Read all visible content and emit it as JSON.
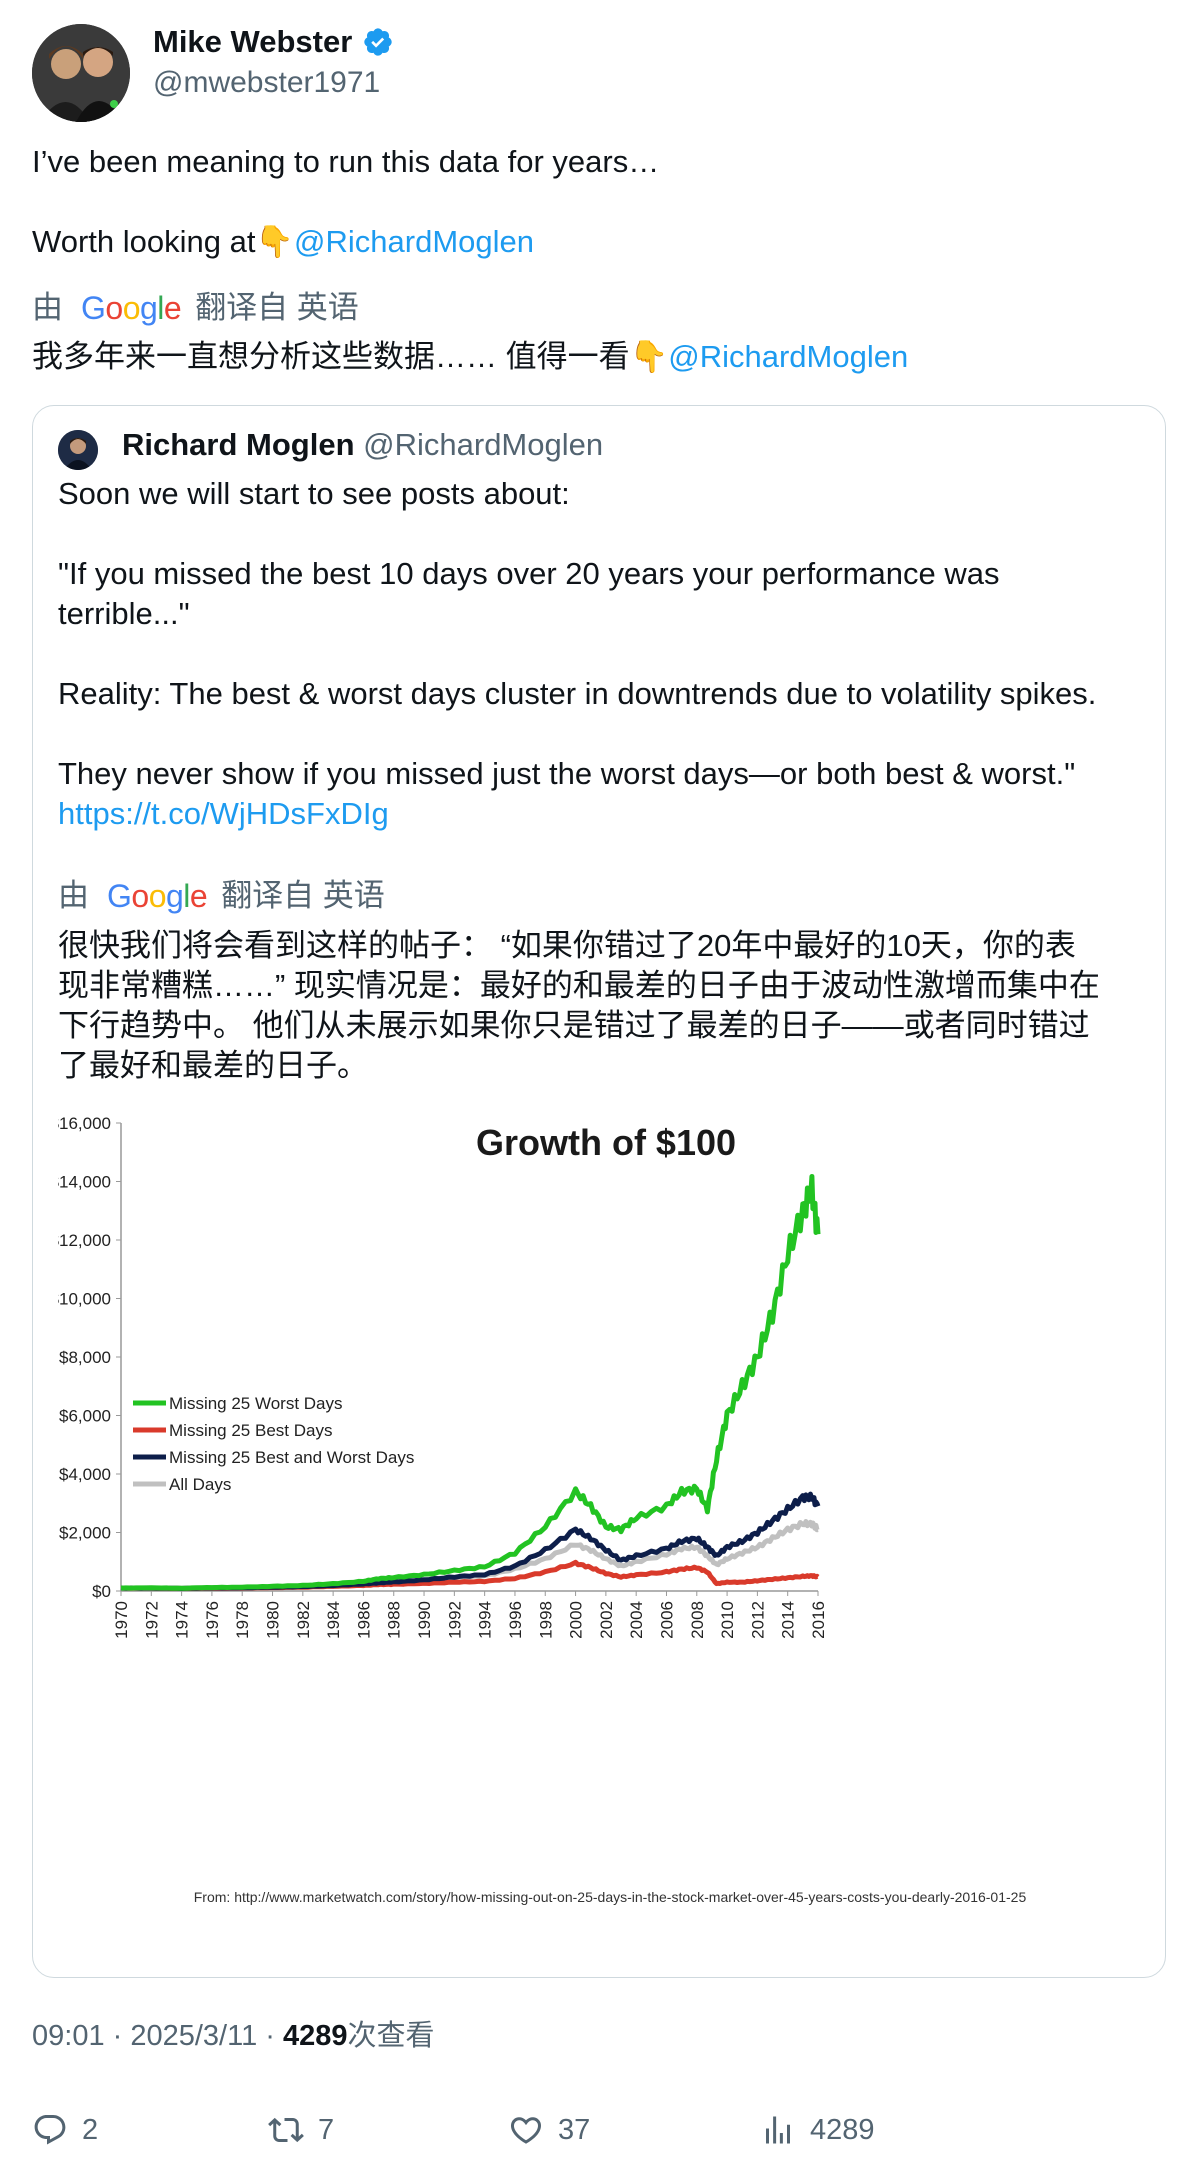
{
  "author": {
    "name": "Mike Webster",
    "handle": "@mwebster1971",
    "verified_icon": "verified-badge-icon"
  },
  "tweet": {
    "line1": "I’ve been meaning to run this data for years…",
    "line2_text": "Worth looking at👇",
    "line2_mention": "@RichardMoglen",
    "translation_by": "由",
    "translation_google": "Google",
    "translation_label": "翻译自 英语",
    "translated_text": "我多年来一直想分析这些数据…… 值得一看👇",
    "translated_mention": "@RichardMoglen"
  },
  "quote": {
    "name": "Richard Moglen",
    "handle": "@RichardMoglen",
    "p1": "Soon we will start to see posts about:",
    "p2a": "\"If you missed the best 10 days over 20 years your performance was",
    "p2b": "terrible...\"",
    "p3": "Reality: The best & worst days cluster in downtrends due to volatility spikes.",
    "p4": "They never show if you missed just the worst days—or both best & worst.\"",
    "link": "https://t.co/WjHDsFxDIg",
    "translation_by": "由",
    "translation_google": "Google",
    "translation_label": "翻译自 英语",
    "translated_lines": [
      "很快我们将会看到这样的帖子： “如果你错过了20年中最好的10天，你的表",
      "现非常糟糕……” 现实情况是：最好的和最差的日子由于波动性激增而集中在",
      "下行趋势中。 他们从未展示如果你只是错过了最差的日子——或者同时错过",
      "了最好和最差的日子。"
    ]
  },
  "chart_data": {
    "type": "line",
    "title": "Growth of $100",
    "source": "From: http://www.marketwatch.com/story/how-missing-out-on-25-days-in-the-stock-market-over-45-years-costs-you-dearly-2016-01-25",
    "y_ticks": [
      "$16,000",
      "$14,000",
      "$12,000",
      "$10,000",
      "$8,000",
      "$6,000",
      "$4,000",
      "$2,000",
      "$0"
    ],
    "x_ticks": [
      "1970",
      "1972",
      "1974",
      "1976",
      "1978",
      "1980",
      "1982",
      "1984",
      "1986",
      "1988",
      "1990",
      "1992",
      "1994",
      "1996",
      "1998",
      "2000",
      "2002",
      "2004",
      "2006",
      "2008",
      "2010",
      "2012",
      "2014",
      "2016"
    ],
    "ylim": [
      0,
      16000
    ],
    "xlim": [
      1970,
      2016
    ],
    "grid": false,
    "legend_position": "middle-left",
    "x": [
      1970,
      1972,
      1974,
      1976,
      1978,
      1980,
      1982,
      1984,
      1986,
      1987,
      1988,
      1990,
      1992,
      1994,
      1996,
      1998,
      2000,
      2001,
      2002,
      2003,
      2004,
      2006,
      2007,
      2008,
      2008.7,
      2009.3,
      2010,
      2011,
      2012,
      2013,
      2014,
      2015,
      2015.6,
      2016
    ],
    "series": [
      {
        "name": "Missing 25 Worst Days",
        "color": "#22c322",
        "values": [
          100,
          110,
          95,
          120,
          130,
          160,
          190,
          250,
          330,
          420,
          460,
          560,
          700,
          830,
          1300,
          2200,
          3400,
          2900,
          2200,
          2100,
          2500,
          2900,
          3400,
          3500,
          2800,
          4500,
          6000,
          7000,
          8000,
          9500,
          11500,
          13000,
          13700,
          12200
        ]
      },
      {
        "name": "Missing 25 Best Days",
        "color": "#d93a2b",
        "values": [
          100,
          100,
          85,
          95,
          100,
          115,
          130,
          160,
          190,
          220,
          230,
          260,
          300,
          330,
          430,
          650,
          950,
          800,
          600,
          480,
          550,
          650,
          750,
          800,
          650,
          250,
          300,
          300,
          350,
          400,
          450,
          500,
          520,
          480
        ]
      },
      {
        "name": "Missing 25 Best and Worst Days",
        "color": "#0d1e4a",
        "values": [
          100,
          100,
          90,
          105,
          110,
          130,
          150,
          190,
          240,
          280,
          310,
          380,
          480,
          560,
          850,
          1400,
          2100,
          1800,
          1400,
          1050,
          1200,
          1450,
          1700,
          1800,
          1500,
          1200,
          1500,
          1700,
          2000,
          2400,
          2800,
          3200,
          3200,
          2900
        ]
      },
      {
        "name": "All Days",
        "color": "#c0c0c0",
        "values": [
          100,
          105,
          95,
          110,
          120,
          140,
          160,
          200,
          260,
          300,
          320,
          380,
          450,
          520,
          750,
          1100,
          1600,
          1400,
          1100,
          850,
          1000,
          1250,
          1450,
          1500,
          1200,
          900,
          1100,
          1300,
          1500,
          1800,
          2100,
          2300,
          2300,
          2100
        ]
      }
    ]
  },
  "footer": {
    "time": "09:01 · 2025/3/11 · ",
    "views_count": "4289",
    "views_label": "次查看",
    "replies": "2",
    "reposts": "7",
    "likes": "37",
    "views": "4289"
  }
}
